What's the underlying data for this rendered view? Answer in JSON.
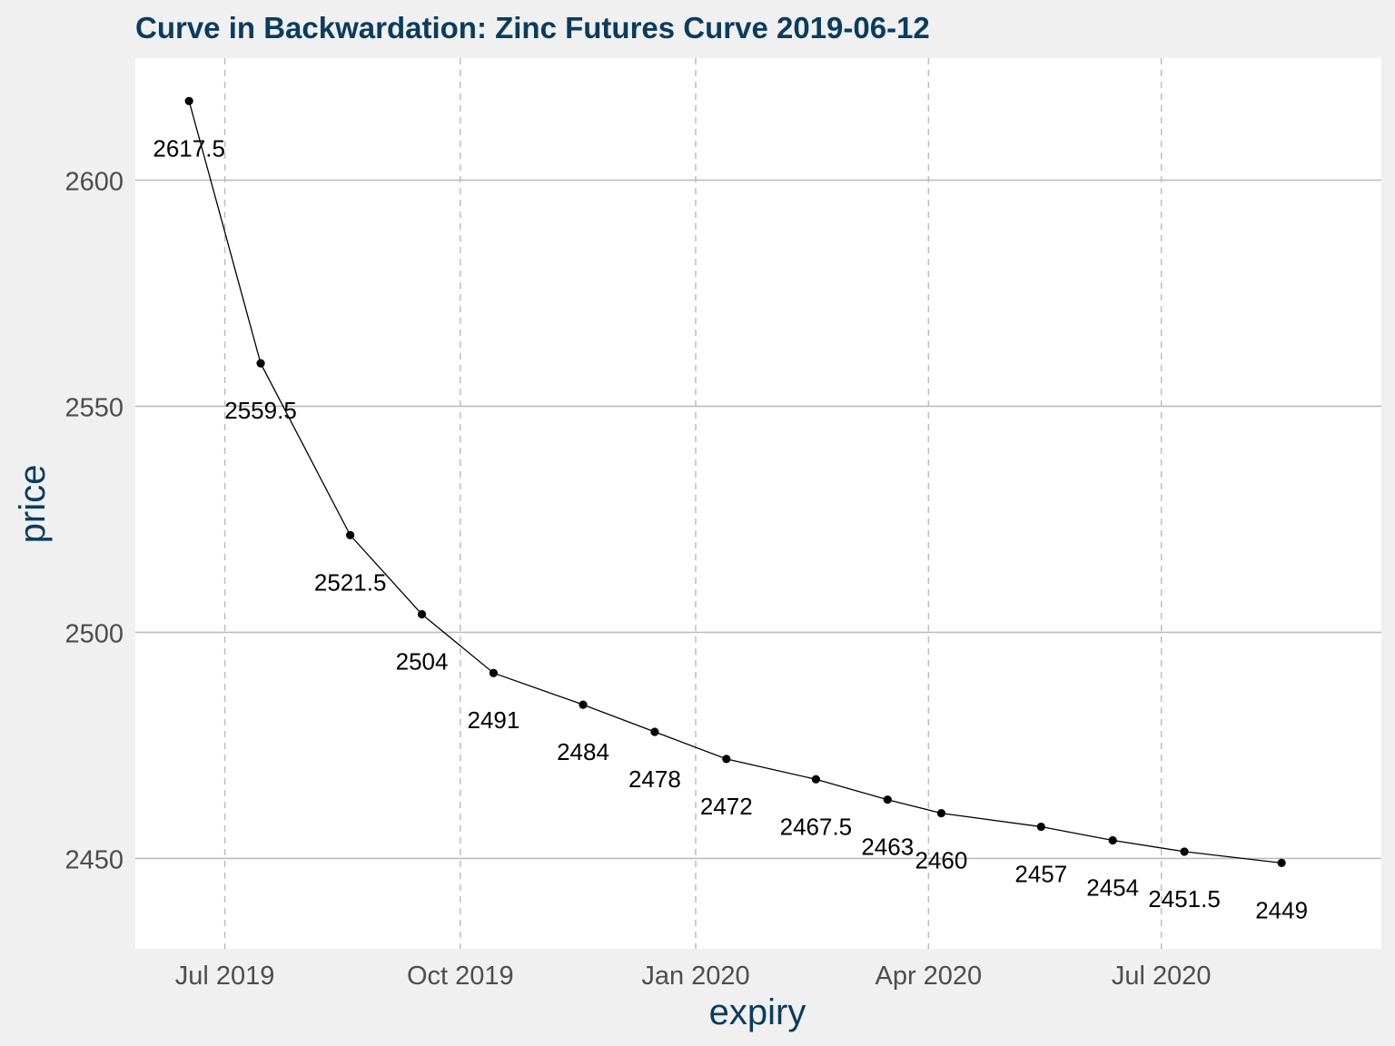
{
  "chart_data": {
    "type": "line",
    "title": "Curve in Backwardation: Zinc Futures Curve 2019-06-12",
    "xlabel": "expiry",
    "ylabel": "price",
    "x_ticks": [
      {
        "label": "Jul 2019",
        "date": "2019-07-01"
      },
      {
        "label": "Oct 2019",
        "date": "2019-10-01"
      },
      {
        "label": "Jan 2020",
        "date": "2020-01-01"
      },
      {
        "label": "Apr 2020",
        "date": "2020-04-01"
      },
      {
        "label": "Jul 2020",
        "date": "2020-07-01"
      }
    ],
    "y_ticks": [
      2450,
      2500,
      2550,
      2600
    ],
    "xlim": [
      "2019-05-27",
      "2020-09-25"
    ],
    "ylim": [
      2430,
      2627
    ],
    "grid": {
      "horizontal_major": true,
      "vertical_dashed": true
    },
    "series": [
      {
        "points": [
          {
            "x": "2019-06-17",
            "y": 2617.5,
            "label": "2617.5"
          },
          {
            "x": "2019-07-15",
            "y": 2559.5,
            "label": "2559.5"
          },
          {
            "x": "2019-08-19",
            "y": 2521.5,
            "label": "2521.5"
          },
          {
            "x": "2019-09-16",
            "y": 2504,
            "label": "2504"
          },
          {
            "x": "2019-10-14",
            "y": 2491,
            "label": "2491"
          },
          {
            "x": "2019-11-18",
            "y": 2484,
            "label": "2484"
          },
          {
            "x": "2019-12-16",
            "y": 2478,
            "label": "2478"
          },
          {
            "x": "2020-01-13",
            "y": 2472,
            "label": "2472"
          },
          {
            "x": "2020-02-17",
            "y": 2467.5,
            "label": "2467.5"
          },
          {
            "x": "2020-03-16",
            "y": 2463,
            "label": "2463"
          },
          {
            "x": "2020-04-06",
            "y": 2460,
            "label": "2460"
          },
          {
            "x": "2020-05-15",
            "y": 2457,
            "label": "2457"
          },
          {
            "x": "2020-06-12",
            "y": 2454,
            "label": "2454"
          },
          {
            "x": "2020-07-10",
            "y": 2451.5,
            "label": "2451.5"
          },
          {
            "x": "2020-08-17",
            "y": 2449,
            "label": "2449"
          }
        ]
      }
    ],
    "colors": {
      "title": "#0b3c5d",
      "axis_label": "#0b3c5d",
      "tick_label": "#4d4d4d",
      "panel_bg": "#ffffff",
      "outer_bg": "#f0f0f0",
      "grid": "#bdbdbd",
      "line": "#000000"
    }
  }
}
